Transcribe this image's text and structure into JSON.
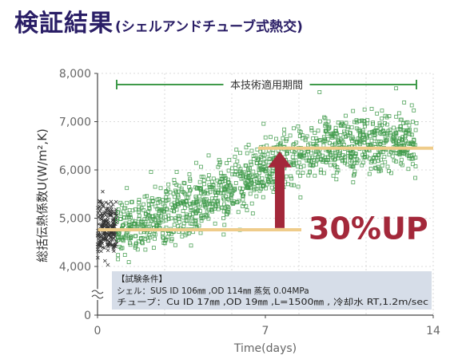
{
  "page": {
    "title": "検証結果",
    "subtitle": "(シェルアンドチューブ式熱交)"
  },
  "chart_data": {
    "type": "scatter",
    "title": "検証結果(シェルアンドチューブ式熱交)",
    "xlabel": "Time(days)",
    "ylabel": "総括伝熱係数U(W/m²,K)",
    "xlim": [
      0,
      14
    ],
    "ylim": [
      0,
      8000
    ],
    "axis_break": [
      0,
      3500
    ],
    "x_ticks": [
      0,
      7,
      14
    ],
    "x_tick_labels": [
      "0",
      "7",
      "14"
    ],
    "y_ticks": [
      0,
      4000,
      5000,
      6000,
      7000,
      8000
    ],
    "y_tick_labels": [
      "0",
      "4,000",
      "5,000",
      "6,000",
      "7,000",
      "8,000"
    ],
    "grid": true,
    "period": {
      "label": "本技術適用期間",
      "from": 0.8,
      "to": 13.3
    },
    "series": [
      {
        "marker": "x",
        "color": "#333333",
        "trend": [
          [
            0.0,
            4800
          ],
          [
            0.8,
            4800
          ]
        ],
        "spread": 260
      },
      {
        "marker": "square",
        "color": "#3f9a4a",
        "trend": [
          [
            0.8,
            4780
          ],
          [
            3.0,
            5100
          ],
          [
            5.0,
            5450
          ],
          [
            7.0,
            6000
          ],
          [
            8.2,
            6300
          ],
          [
            9.5,
            6500
          ],
          [
            13.3,
            6550
          ]
        ],
        "spread": 300
      }
    ],
    "reference_lines": [
      {
        "y": 4760,
        "x_from": 0,
        "x_to": 8.5,
        "color": "#efcc8a"
      },
      {
        "y": 6450,
        "x_from": 6.7,
        "x_to": 14,
        "color": "#efcc8a"
      }
    ],
    "arrow": {
      "x": 7.6,
      "y_from": 4780,
      "y_to": 6450,
      "color": "#a3283a"
    },
    "annotation": {
      "text": "30%UP",
      "x": 8.8,
      "y": 4800,
      "color": "#a3283a"
    },
    "info_box": {
      "heading": "【試験条件】",
      "line1": "シェル：SUS ID 106㎜ ,OD 114㎜  蒸気 0.04MPa",
      "line2": "チューブ：Cu ID 17㎜ ,OD 19㎜ ,L=1500㎜ , 冷却水 RT,1.2m/sec"
    },
    "colors": {
      "title": "#2a1e66",
      "grid": "#cfcfcf",
      "axis_text": "#666666",
      "period": "#3f9a4a",
      "info_box_bg": "#d6dde8"
    }
  }
}
